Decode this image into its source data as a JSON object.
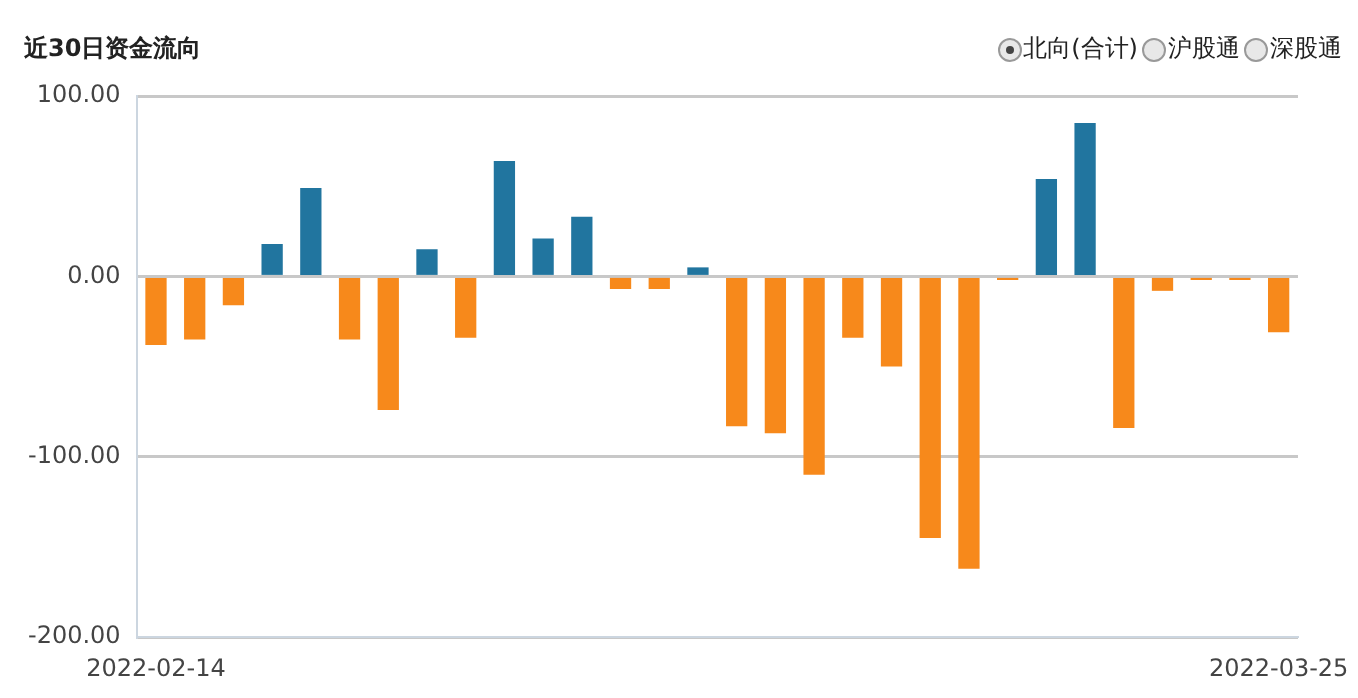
{
  "chart_data": {
    "type": "bar",
    "title": "近30日资金流向",
    "categories": [
      "2022-02-14",
      null,
      null,
      null,
      null,
      null,
      null,
      null,
      null,
      null,
      null,
      null,
      null,
      null,
      null,
      null,
      null,
      null,
      null,
      null,
      null,
      null,
      null,
      null,
      null,
      null,
      null,
      null,
      null,
      "2022-03-25"
    ],
    "values": [
      -38,
      -35,
      -16,
      18,
      49,
      -35,
      -74,
      15,
      -34,
      64,
      21,
      33,
      -7,
      -7,
      5,
      -83,
      -87,
      -110,
      -34,
      -50,
      -145,
      -162,
      -2,
      54,
      85,
      -84,
      -8,
      -2,
      -2,
      -31
    ],
    "colors": [
      "#f7891b",
      "#f7891b",
      "#f7891b",
      "#21759f",
      "#21759f",
      "#f7891b",
      "#f7891b",
      "#21759f",
      "#f7891b",
      "#21759f",
      "#21759f",
      "#21759f",
      "#f7891b",
      "#f7891b",
      "#21759f",
      "#f7891b",
      "#f7891b",
      "#f7891b",
      "#f7891b",
      "#f7891b",
      "#f7891b",
      "#f7891b",
      "#f7891b",
      "#21759f",
      "#21759f",
      "#f7891b",
      "#f7891b",
      "#f7891b",
      "#f7891b",
      "#f7891b"
    ],
    "ylim": [
      -200,
      100
    ],
    "yticks": [
      {
        "value": -200,
        "label": "-200.00"
      },
      {
        "value": -100,
        "label": "-100.00"
      },
      {
        "value": 0,
        "label": "0.00"
      },
      {
        "value": 100,
        "label": "100.00"
      }
    ],
    "grid": "y",
    "legend": false,
    "annotations": [
      "北向(合计)",
      "沪股通",
      "深股通"
    ]
  }
}
